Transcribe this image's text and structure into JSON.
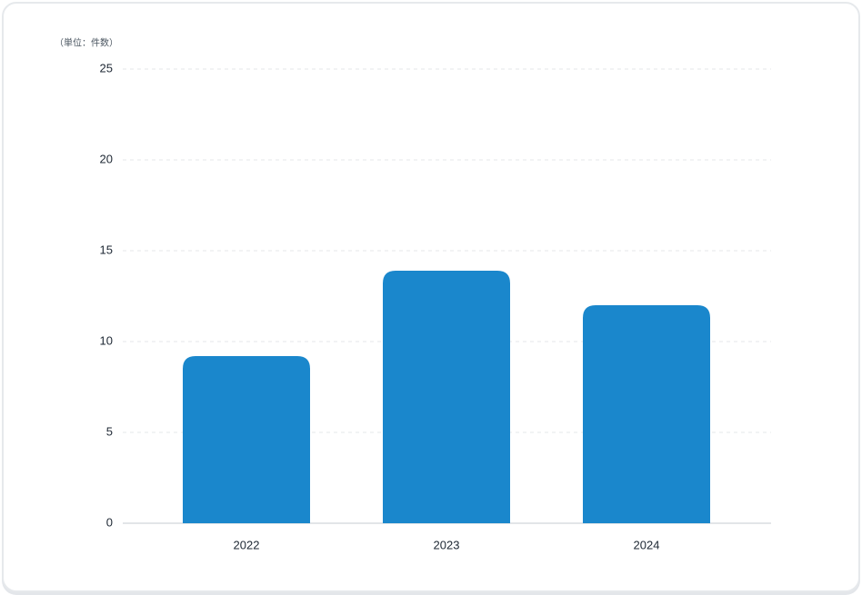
{
  "chart_data": {
    "type": "bar",
    "unit_label": "（単位：件数）",
    "categories": [
      "2022",
      "2023",
      "2024"
    ],
    "values": [
      9.2,
      13.9,
      12
    ],
    "color": "#1a87cc",
    "ylim": [
      0,
      25
    ],
    "yticks": [
      0,
      5,
      10,
      15,
      20,
      25
    ],
    "grid": true
  }
}
